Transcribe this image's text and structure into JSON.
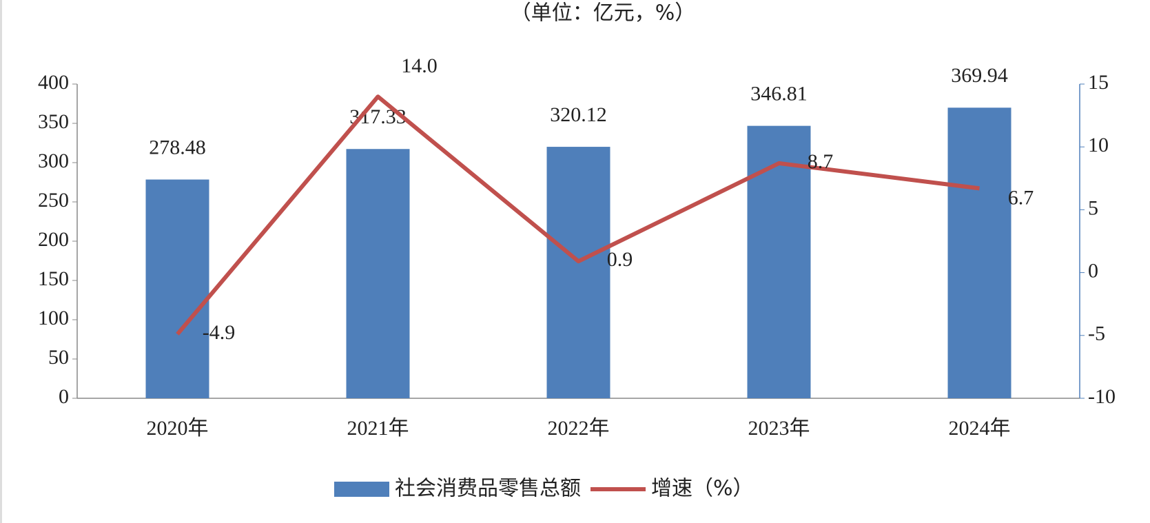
{
  "chart_data": {
    "type": "bar-line",
    "subtitle": "（单位：亿元，%）",
    "categories": [
      "2020年",
      "2021年",
      "2022年",
      "2023年",
      "2024年"
    ],
    "series": [
      {
        "name": "社会消费品零售总额",
        "type": "bar",
        "color": "#4f7fba",
        "values": [
          278.48,
          317.33,
          320.12,
          346.81,
          369.94
        ]
      },
      {
        "name": "增速（%）",
        "type": "line",
        "axis": "y2",
        "color": "#c0504d",
        "values": [
          -4.9,
          14.0,
          0.9,
          8.7,
          6.7
        ],
        "value_labels": [
          "-4.9",
          "14.0",
          "0.9",
          "8.7",
          "6.7"
        ]
      }
    ],
    "ylim": [
      0,
      400
    ],
    "yticks": [
      0,
      50,
      100,
      150,
      200,
      250,
      300,
      350,
      400
    ],
    "y2lim": [
      -10,
      15
    ],
    "y2ticks": [
      -10,
      -5,
      0,
      5,
      10,
      15
    ],
    "grid": false,
    "legend": "bottom"
  }
}
